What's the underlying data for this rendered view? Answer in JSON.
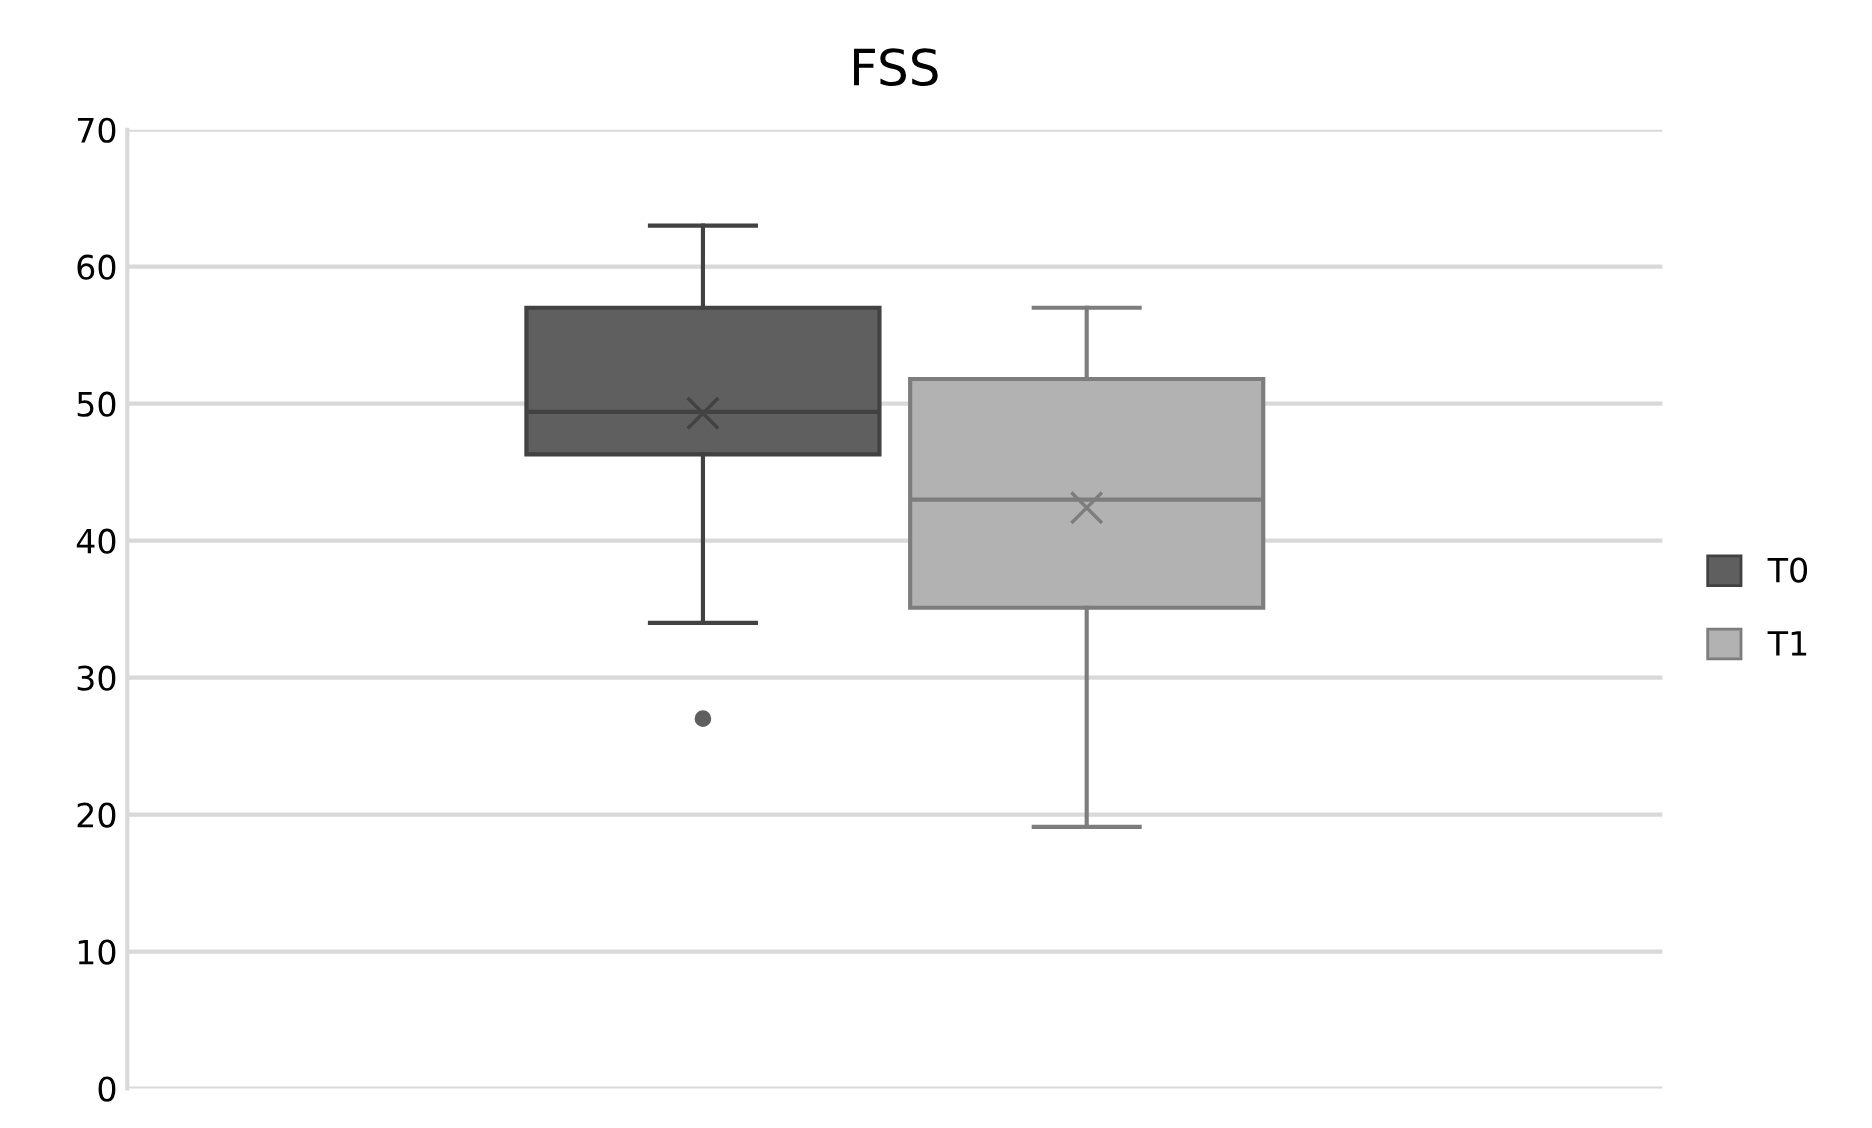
{
  "chart_data": {
    "type": "box",
    "title": "FSS",
    "categories": [
      null
    ],
    "series": [
      {
        "name": "T0",
        "color": "#5f5f5f",
        "boxes": [
          {
            "low": 34,
            "q1": 46.3,
            "median": 49.4,
            "q3": 57,
            "high": 63,
            "mean": 49.3,
            "outliers": [
              27
            ]
          }
        ]
      },
      {
        "name": "T1",
        "color": "#b2b2b2",
        "boxes": [
          {
            "low": 19.1,
            "q1": 35.1,
            "median": 43,
            "q3": 51.8,
            "high": 57,
            "mean": 42.4
          }
        ]
      }
    ],
    "ylim": [
      0,
      70
    ],
    "yticks": [
      0,
      10,
      20,
      30,
      40,
      50,
      60,
      70
    ],
    "grid": "y",
    "legend": "right"
  }
}
